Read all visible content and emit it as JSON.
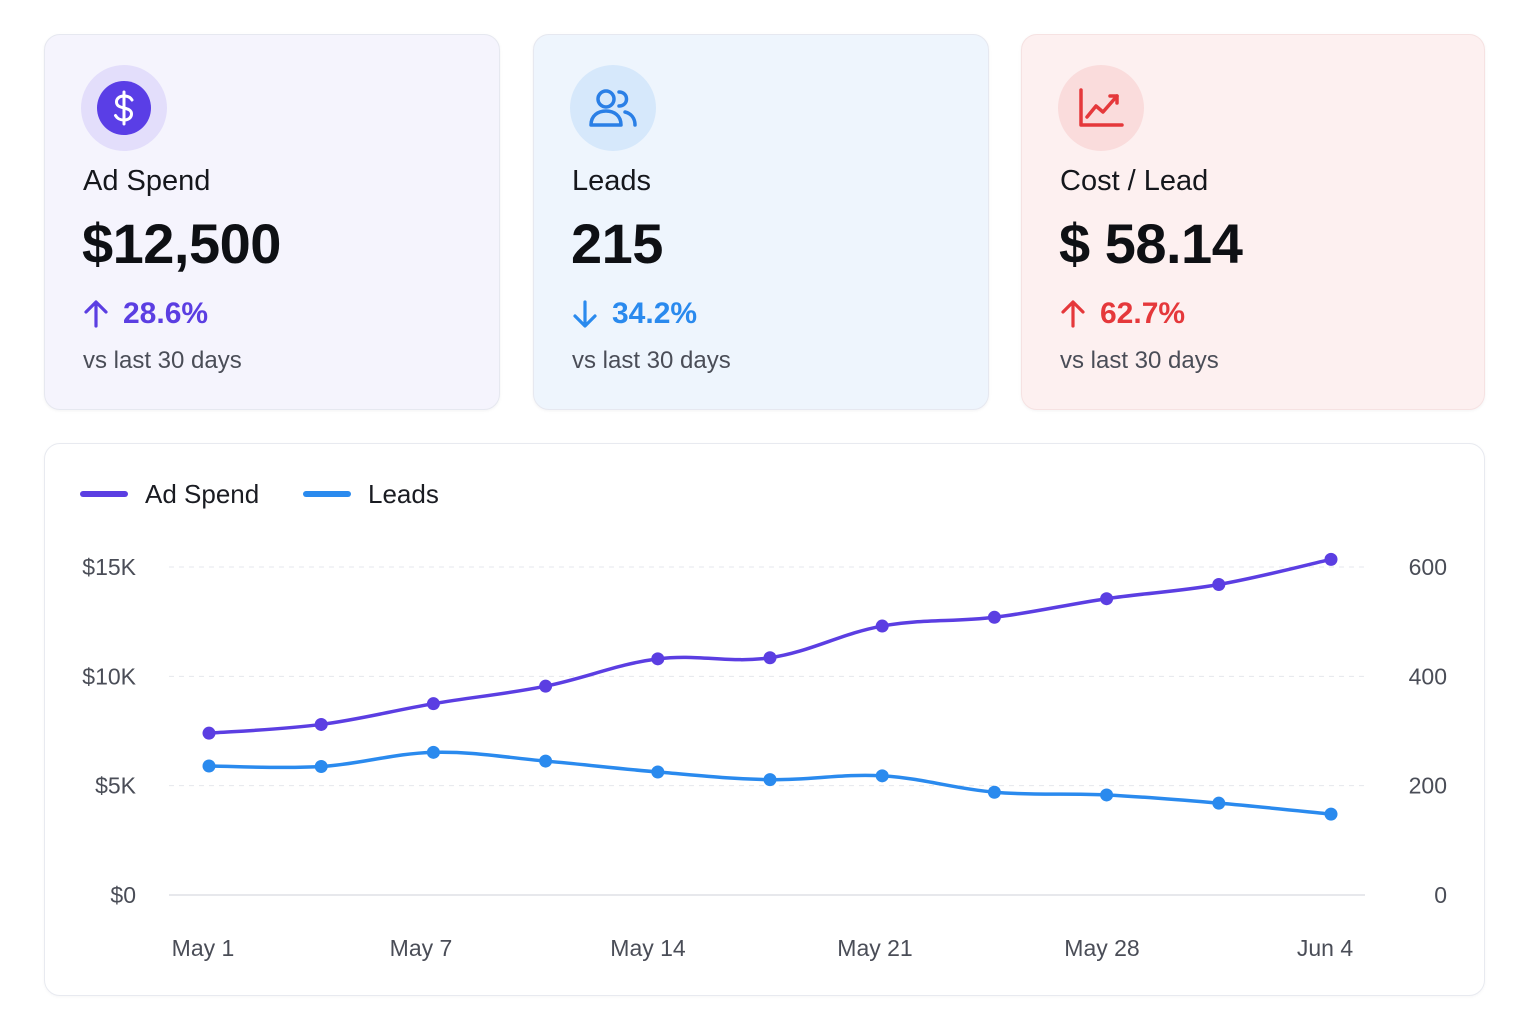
{
  "colors": {
    "ad_spend": "#5b3ee2",
    "leads": "#2a8aee",
    "cost_per_lead": "#e5383b",
    "grid": "#e5e7ec",
    "axis_text": "#4a4d57"
  },
  "cards": [
    {
      "icon": "dollar-icon",
      "title": "Ad Spend",
      "value": "$12,500",
      "change": "28.6%",
      "direction": "up",
      "comparison": "vs last 30 days"
    },
    {
      "icon": "users-icon",
      "title": "Leads",
      "value": "215",
      "change": "34.2%",
      "direction": "down",
      "comparison": "vs last 30 days"
    },
    {
      "icon": "trend-chart-icon",
      "title": "Cost / Lead",
      "value": "$ 58.14",
      "change": "62.7%",
      "direction": "up",
      "comparison": "vs last 30 days"
    }
  ],
  "chart_data": {
    "type": "line",
    "grid": true,
    "legend_position": "top-left",
    "x_ticks": [
      "May 1",
      "May 7",
      "May 14",
      "May 21",
      "May 28",
      "Jun 4"
    ],
    "points": 11,
    "y_left": {
      "ticks": [
        "$0",
        "$5K",
        "$10K",
        "$15K"
      ],
      "range": [
        0,
        15000
      ]
    },
    "y_right": {
      "ticks": [
        "0",
        "200",
        "400",
        "600"
      ],
      "range": [
        0,
        600
      ]
    },
    "series": [
      {
        "name": "Ad Spend",
        "axis": "left",
        "values": [
          7400,
          7800,
          8750,
          9550,
          10800,
          10850,
          12300,
          12700,
          13550,
          14200,
          15350
        ]
      },
      {
        "name": "Leads",
        "axis": "right",
        "values": [
          236,
          235,
          261,
          245,
          225,
          211,
          218,
          188,
          183,
          168,
          148
        ]
      }
    ]
  }
}
